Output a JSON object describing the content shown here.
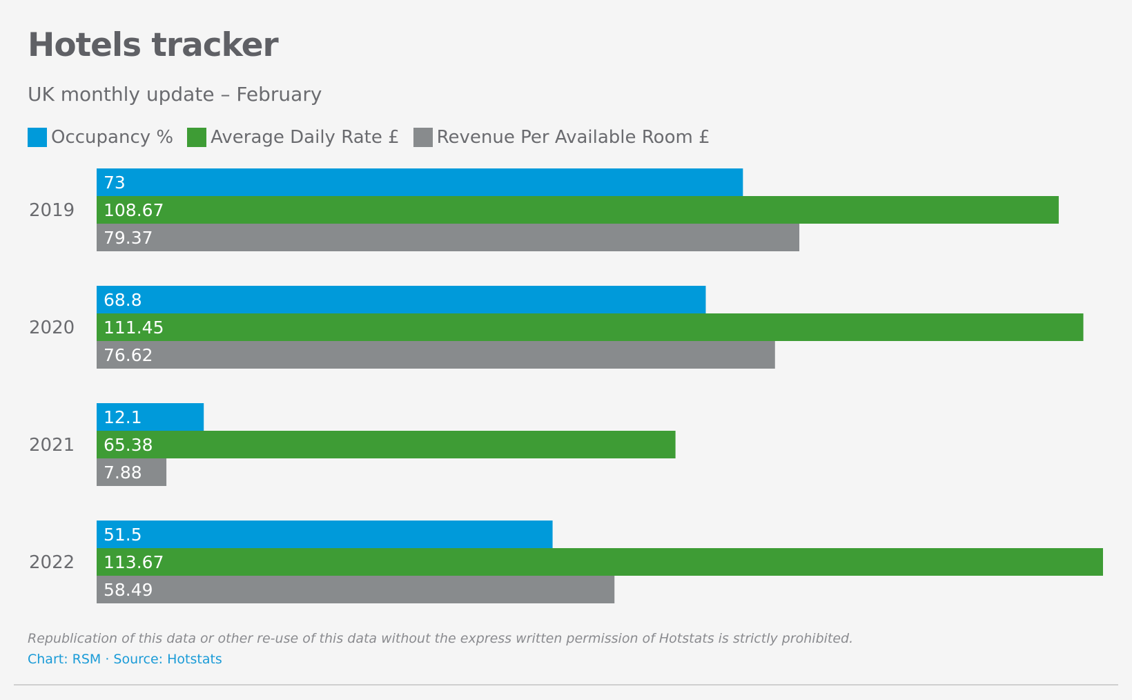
{
  "header": {
    "title": "Hotels tracker",
    "subtitle": "UK monthly update – February"
  },
  "legend": {
    "items": [
      {
        "label": "Occupancy %",
        "color": "#009ada"
      },
      {
        "label": "Average Daily Rate £",
        "color": "#3e9c35"
      },
      {
        "label": "Revenue Per Available Room £",
        "color": "#888b8d"
      }
    ]
  },
  "chart_data": {
    "type": "bar",
    "orientation": "horizontal",
    "categories": [
      "2019",
      "2020",
      "2021",
      "2022"
    ],
    "series": [
      {
        "name": "Occupancy %",
        "color": "#009ada",
        "values": [
          73,
          68.8,
          12.1,
          51.5
        ],
        "labels": [
          "73",
          "68.8",
          "12.1",
          "51.5"
        ]
      },
      {
        "name": "Average Daily Rate £",
        "color": "#3e9c35",
        "values": [
          108.67,
          111.45,
          65.38,
          113.67
        ],
        "labels": [
          "108.67",
          "111.45",
          "65.38",
          "113.67"
        ]
      },
      {
        "name": "Revenue Per Available Room £",
        "color": "#888b8d",
        "values": [
          79.37,
          76.62,
          7.88,
          58.49
        ],
        "labels": [
          "79.37",
          "76.62",
          "7.88",
          "58.49"
        ]
      }
    ],
    "xlim": [
      0,
      113.67
    ],
    "grid": false
  },
  "footer": {
    "note": "Republication of this data or other re-use of this data without the express written permission of Hotstats is strictly prohibited.",
    "credits": "Chart: RSM · Source: Hotstats"
  }
}
